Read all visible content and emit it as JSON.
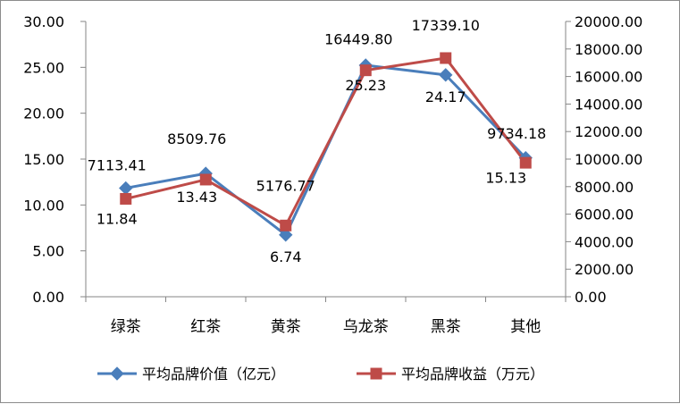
{
  "chart_data": {
    "type": "line",
    "title": "",
    "categories": [
      "绿茶",
      "红茶",
      "黄茶",
      "乌龙茶",
      "黑茶",
      "其他"
    ],
    "series": [
      {
        "name": "平均品牌价值（亿元）",
        "axis": "left",
        "color": "#4a7ebb",
        "marker": "diamond",
        "values": [
          11.84,
          13.43,
          6.74,
          25.23,
          24.17,
          15.13
        ],
        "labels": [
          "11.84",
          "13.43",
          "6.74",
          "25.23",
          "24.17",
          "15.13"
        ]
      },
      {
        "name": "平均品牌收益（万元）",
        "axis": "right",
        "color": "#be4b48",
        "marker": "square",
        "values": [
          7113.41,
          8509.76,
          5176.77,
          16449.8,
          17339.1,
          9734.18
        ],
        "labels": [
          "7113.41",
          "8509.76",
          "5176.77",
          "16449.80",
          "17339.10",
          "9734.18"
        ]
      }
    ],
    "y_left": {
      "min": 0,
      "max": 30,
      "step": 5,
      "ticks": [
        "0.00",
        "5.00",
        "10.00",
        "15.00",
        "20.00",
        "25.00",
        "30.00"
      ]
    },
    "y_right": {
      "min": 0,
      "max": 20000,
      "step": 2000,
      "ticks": [
        "0.00",
        "2000.00",
        "4000.00",
        "6000.00",
        "8000.00",
        "10000.00",
        "12000.00",
        "14000.00",
        "16000.00",
        "18000.00",
        "20000.00"
      ]
    },
    "grid": false,
    "legend_position": "bottom"
  }
}
